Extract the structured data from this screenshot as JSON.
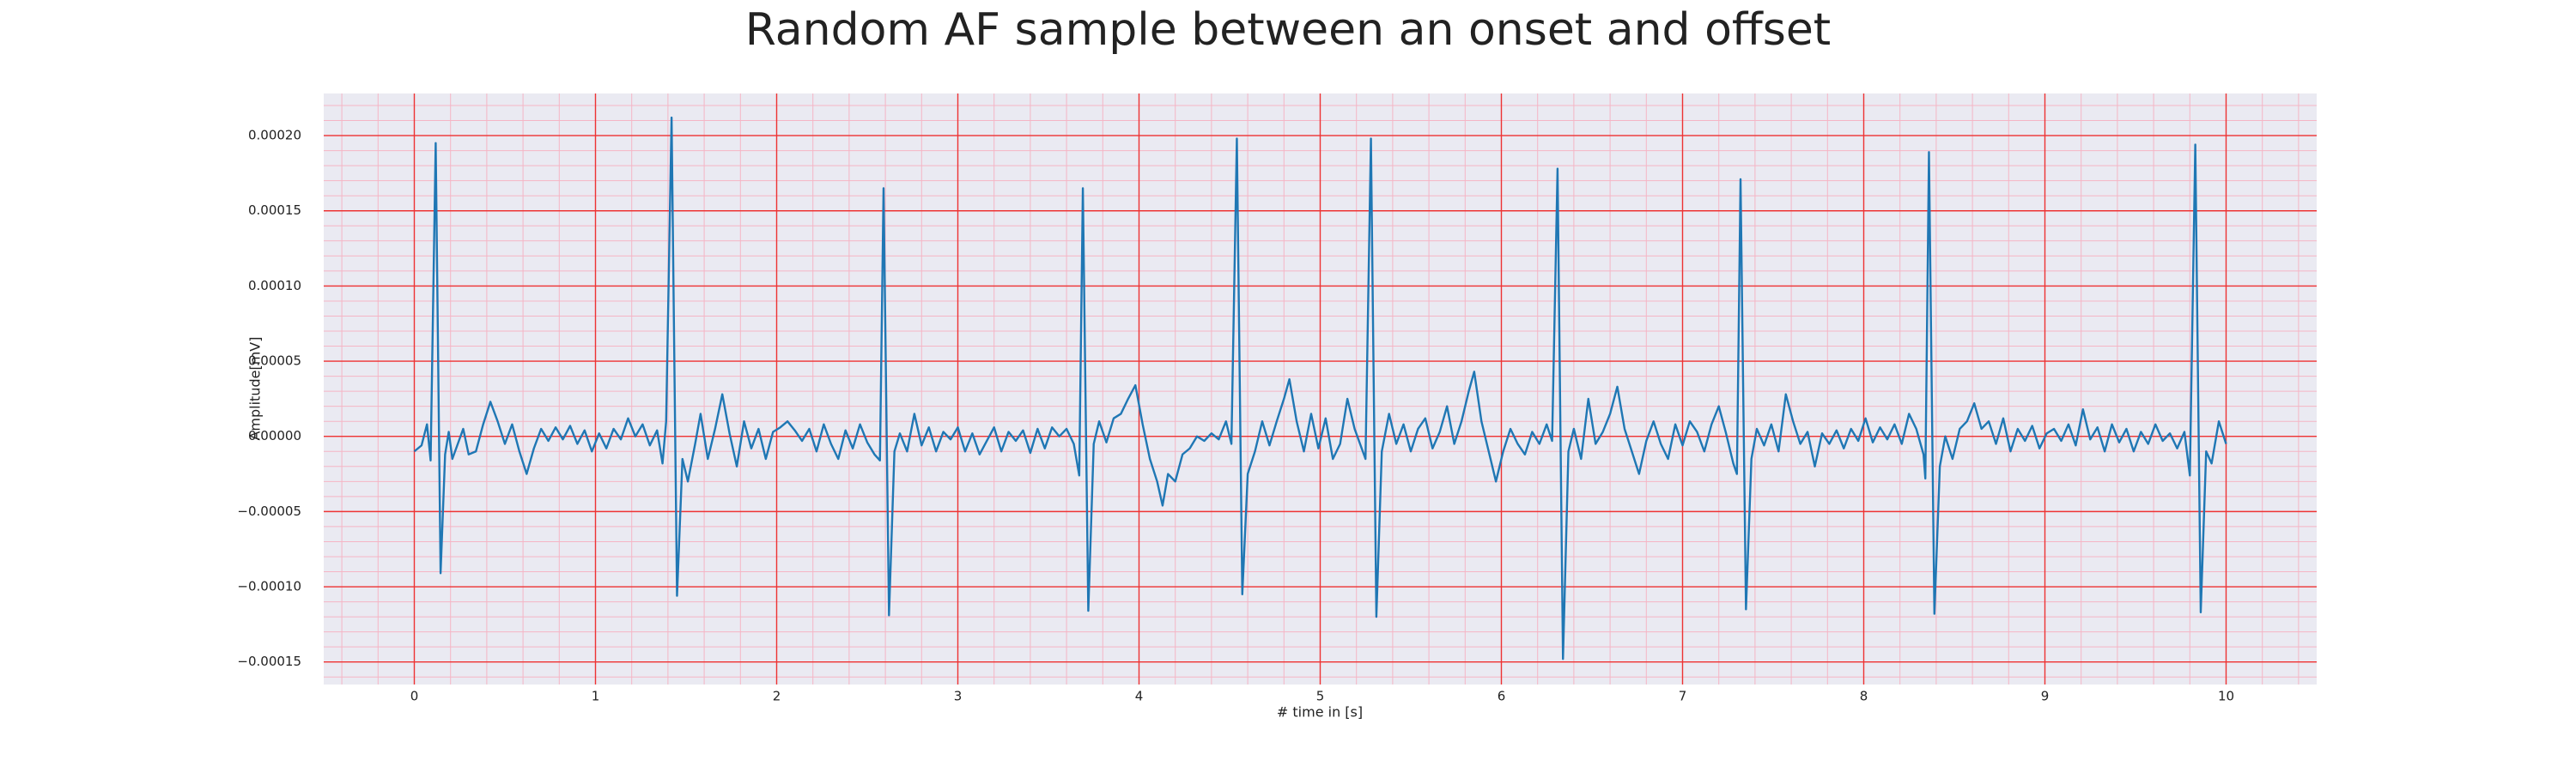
{
  "chart_data": {
    "type": "line",
    "title": "Random AF sample between an onset and offset",
    "x_label": "# time in [s]",
    "y_label": "Amplitude[mV]",
    "color": "#1f77b4",
    "grid": true,
    "grid_color": "#ee3333",
    "minor_grid": true,
    "minor_grid_color": "#f5b5c5",
    "minor_divisions": 5,
    "xlim": [
      -0.5,
      10.5
    ],
    "xticks": [
      0,
      1,
      2,
      3,
      4,
      5,
      6,
      7,
      8,
      9,
      10
    ],
    "ylim": [
      -0.000165,
      0.000228
    ],
    "yticks": [
      {
        "value": -0.00015,
        "label": "−0.00015"
      },
      {
        "value": -0.0001,
        "label": "−0.00010"
      },
      {
        "value": -5e-05,
        "label": "−0.00005"
      },
      {
        "value": 0,
        "label": "0.00000"
      },
      {
        "value": 5e-05,
        "label": "0.00005"
      },
      {
        "value": 0.0001,
        "label": "0.00010"
      },
      {
        "value": 0.00015,
        "label": "0.00015"
      },
      {
        "value": 0.0002,
        "label": "0.00020"
      }
    ],
    "x": [
      0.0,
      0.04,
      0.07,
      0.09,
      0.118,
      0.145,
      0.17,
      0.19,
      0.21,
      0.24,
      0.27,
      0.3,
      0.34,
      0.38,
      0.42,
      0.46,
      0.5,
      0.54,
      0.58,
      0.62,
      0.66,
      0.7,
      0.74,
      0.78,
      0.82,
      0.86,
      0.9,
      0.94,
      0.98,
      1.02,
      1.06,
      1.1,
      1.14,
      1.18,
      1.22,
      1.26,
      1.3,
      1.34,
      1.37,
      1.39,
      1.42,
      1.45,
      1.48,
      1.51,
      1.55,
      1.58,
      1.62,
      1.66,
      1.7,
      1.74,
      1.78,
      1.82,
      1.86,
      1.9,
      1.94,
      1.98,
      2.02,
      2.06,
      2.1,
      2.14,
      2.18,
      2.22,
      2.26,
      2.3,
      2.34,
      2.38,
      2.42,
      2.46,
      2.5,
      2.54,
      2.57,
      2.59,
      2.62,
      2.65,
      2.68,
      2.72,
      2.76,
      2.8,
      2.84,
      2.88,
      2.92,
      2.96,
      3.0,
      3.04,
      3.08,
      3.12,
      3.16,
      3.2,
      3.24,
      3.28,
      3.32,
      3.36,
      3.4,
      3.44,
      3.48,
      3.52,
      3.56,
      3.6,
      3.64,
      3.67,
      3.69,
      3.72,
      3.75,
      3.78,
      3.82,
      3.86,
      3.9,
      3.94,
      3.98,
      4.02,
      4.06,
      4.1,
      4.13,
      4.16,
      4.2,
      4.24,
      4.28,
      4.32,
      4.36,
      4.4,
      4.44,
      4.48,
      4.51,
      4.54,
      4.57,
      4.6,
      4.64,
      4.68,
      4.72,
      4.76,
      4.8,
      4.83,
      4.87,
      4.91,
      4.95,
      4.99,
      5.03,
      5.07,
      5.11,
      5.15,
      5.19,
      5.22,
      5.25,
      5.28,
      5.31,
      5.34,
      5.38,
      5.42,
      5.46,
      5.5,
      5.54,
      5.58,
      5.62,
      5.66,
      5.7,
      5.74,
      5.78,
      5.82,
      5.85,
      5.89,
      5.93,
      5.97,
      6.01,
      6.05,
      6.09,
      6.13,
      6.17,
      6.21,
      6.25,
      6.28,
      6.31,
      6.34,
      6.37,
      6.4,
      6.44,
      6.48,
      6.52,
      6.56,
      6.6,
      6.64,
      6.68,
      6.72,
      6.76,
      6.8,
      6.84,
      6.88,
      6.92,
      6.96,
      7.0,
      7.04,
      7.08,
      7.12,
      7.16,
      7.2,
      7.24,
      7.28,
      7.3,
      7.32,
      7.35,
      7.38,
      7.41,
      7.45,
      7.49,
      7.53,
      7.57,
      7.61,
      7.65,
      7.69,
      7.73,
      7.77,
      7.81,
      7.85,
      7.89,
      7.93,
      7.97,
      8.01,
      8.05,
      8.09,
      8.13,
      8.17,
      8.21,
      8.25,
      8.29,
      8.33,
      8.34,
      8.36,
      8.39,
      8.42,
      8.45,
      8.49,
      8.53,
      8.57,
      8.61,
      8.65,
      8.69,
      8.73,
      8.77,
      8.81,
      8.85,
      8.89,
      8.93,
      8.97,
      9.01,
      9.05,
      9.09,
      9.13,
      9.17,
      9.21,
      9.25,
      9.29,
      9.33,
      9.37,
      9.41,
      9.45,
      9.49,
      9.53,
      9.57,
      9.61,
      9.65,
      9.69,
      9.73,
      9.77,
      9.8,
      9.83,
      9.86,
      9.89,
      9.92,
      9.96,
      10.0
    ],
    "values": [
      -1e-05,
      -6e-06,
      8e-06,
      -1.6e-05,
      0.000195,
      -9.1e-05,
      -1.2e-05,
      3e-06,
      -1.5e-05,
      -5e-06,
      5e-06,
      -1.2e-05,
      -1e-05,
      8e-06,
      2.3e-05,
      1e-05,
      -5e-06,
      8e-06,
      -1e-05,
      -2.5e-05,
      -8e-06,
      5e-06,
      -3e-06,
      6e-06,
      -2e-06,
      7e-06,
      -5e-06,
      4e-06,
      -1e-05,
      2e-06,
      -8e-06,
      5e-06,
      -2e-06,
      1.2e-05,
      0.0,
      8e-06,
      -6e-06,
      4e-06,
      -1.8e-05,
      1e-05,
      0.000212,
      -0.000106,
      -1.5e-05,
      -3e-05,
      -5e-06,
      1.5e-05,
      -1.5e-05,
      5e-06,
      2.8e-05,
      2e-06,
      -2e-05,
      1e-05,
      -8e-06,
      5e-06,
      -1.5e-05,
      3e-06,
      6e-06,
      1e-05,
      4e-06,
      -3e-06,
      5e-06,
      -1e-05,
      8e-06,
      -5e-06,
      -1.5e-05,
      4e-06,
      -8e-06,
      8e-06,
      -4e-06,
      -1.2e-05,
      -1.6e-05,
      0.000165,
      -0.000119,
      -1e-05,
      2e-06,
      -1e-05,
      1.5e-05,
      -6e-06,
      6e-06,
      -1e-05,
      3e-06,
      -2e-06,
      6e-06,
      -1e-05,
      2e-06,
      -1.2e-05,
      -3e-06,
      6e-06,
      -1e-05,
      3e-06,
      -3e-06,
      4e-06,
      -1.1e-05,
      5e-06,
      -8e-06,
      6e-06,
      0.0,
      5e-06,
      -5e-06,
      -2.6e-05,
      0.000165,
      -0.000116,
      -5e-06,
      1e-05,
      -4e-06,
      1.2e-05,
      1.5e-05,
      2.5e-05,
      3.4e-05,
      8e-06,
      -1.5e-05,
      -3e-05,
      -4.6e-05,
      -2.5e-05,
      -3e-05,
      -1.2e-05,
      -8e-06,
      0.0,
      -3e-06,
      2e-06,
      -2e-06,
      1e-05,
      -5e-06,
      0.000198,
      -0.000105,
      -2.5e-05,
      -1e-05,
      1e-05,
      -6e-06,
      1e-05,
      2.5e-05,
      3.8e-05,
      1e-05,
      -1e-05,
      1.5e-05,
      -8e-06,
      1.2e-05,
      -1.5e-05,
      -5e-06,
      2.5e-05,
      5e-06,
      -5e-06,
      -1.5e-05,
      0.000198,
      -0.00012,
      -1e-05,
      1.5e-05,
      -5e-06,
      8e-06,
      -1e-05,
      5e-06,
      1.2e-05,
      -8e-06,
      3e-06,
      2e-05,
      -5e-06,
      1e-05,
      3e-05,
      4.3e-05,
      1e-05,
      -1e-05,
      -3e-05,
      -1e-05,
      5e-06,
      -5e-06,
      -1.2e-05,
      3e-06,
      -5e-06,
      8e-06,
      -3e-06,
      0.000178,
      -0.000148,
      -1e-05,
      5e-06,
      -1.5e-05,
      2.5e-05,
      -5e-06,
      3e-06,
      1.5e-05,
      3.3e-05,
      5e-06,
      -1e-05,
      -2.5e-05,
      -3e-06,
      1e-05,
      -5e-06,
      -1.5e-05,
      8e-06,
      -6e-06,
      1e-05,
      3e-06,
      -1e-05,
      8e-06,
      2e-05,
      2e-06,
      -1.8e-05,
      -2.5e-05,
      0.000171,
      -0.000115,
      -1.5e-05,
      5e-06,
      -6e-06,
      8e-06,
      -1e-05,
      2.8e-05,
      1e-05,
      -5e-06,
      3e-06,
      -2e-05,
      2e-06,
      -5e-06,
      4e-06,
      -8e-06,
      5e-06,
      -3e-06,
      1.2e-05,
      -4e-06,
      6e-06,
      -2e-06,
      8e-06,
      -5e-06,
      1.5e-05,
      5e-06,
      -1.2e-05,
      -2.8e-05,
      0.000189,
      -0.000118,
      -2e-05,
      0.0,
      -1.5e-05,
      5e-06,
      1e-05,
      2.2e-05,
      5e-06,
      1e-05,
      -5e-06,
      1.2e-05,
      -1e-05,
      5e-06,
      -3e-06,
      7e-06,
      -8e-06,
      2e-06,
      5e-06,
      -3e-06,
      8e-06,
      -6e-06,
      1.8e-05,
      -2e-06,
      6e-06,
      -1e-05,
      8e-06,
      -4e-06,
      5e-06,
      -1e-05,
      3e-06,
      -5e-06,
      8e-06,
      -3e-06,
      2e-06,
      -8e-06,
      3e-06,
      -2.6e-05,
      0.000194,
      -0.000117,
      -1e-05,
      -1.8e-05,
      1e-05,
      -5e-06
    ]
  }
}
